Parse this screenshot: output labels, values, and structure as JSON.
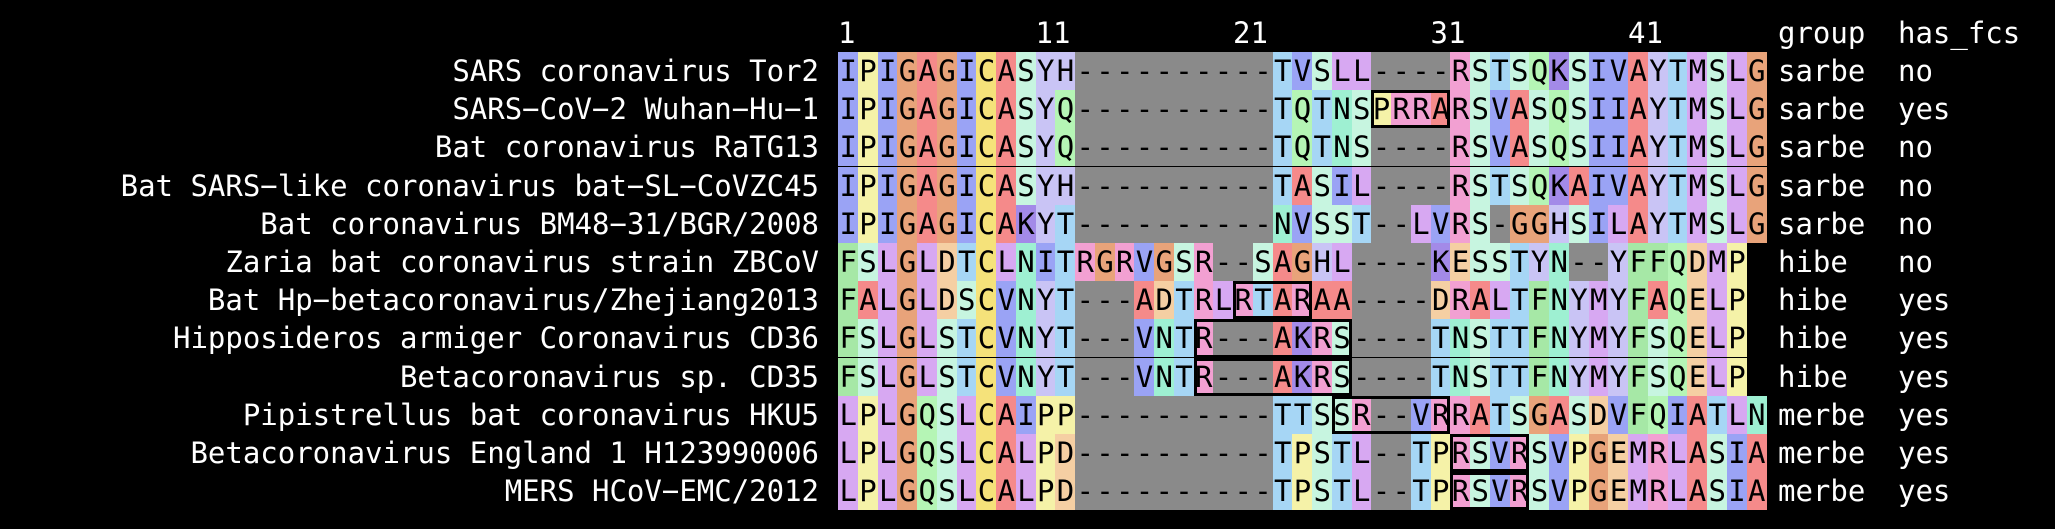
{
  "position_labels": [
    {
      "text": "1",
      "col": 0
    },
    {
      "text": "11",
      "col": 10
    },
    {
      "text": "21",
      "col": 20
    },
    {
      "text": "31",
      "col": 30
    },
    {
      "text": "41",
      "col": 40
    }
  ],
  "headers": {
    "group": "group",
    "has_fcs": "has_fcs"
  },
  "sequences": [
    {
      "name": "SARS coronavirus Tor2",
      "seq": "IPIGAGICASYH----------TVSLL----RSTSQKSIVAYTMSLG",
      "group": "sarbe",
      "has_fcs": "no"
    },
    {
      "name": "SARS−CoV−2 Wuhan−Hu−1",
      "seq": "IPIGAGICASYQ----------TQTNSPRRARSVASQSIIAYTMSLG",
      "group": "sarbe",
      "has_fcs": "yes"
    },
    {
      "name": "Bat coronavirus RaTG13",
      "seq": "IPIGAGICASYQ----------TQTNS----RSVASQSIIAYTMSLG",
      "group": "sarbe",
      "has_fcs": "no"
    },
    {
      "name": "Bat SARS−like coronavirus bat−SL−CoVZC45",
      "seq": "IPIGAGICASYH----------TASIL----RSTSQKAIVAYTMSLG",
      "group": "sarbe",
      "has_fcs": "no"
    },
    {
      "name": "Bat coronavirus BM48−31/BGR/2008",
      "seq": "IPIGAGICAKYT----------NVSST--LVRS-GGHSILAYTMSLG",
      "group": "sarbe",
      "has_fcs": "no"
    },
    {
      "name": "Zaria bat coronavirus strain ZBCoV",
      "seq": "FSLGLDTCLNITRGRVGSR--SAGHL----KESSTYN--YFFQDMP",
      "group": "hibe",
      "has_fcs": "no"
    },
    {
      "name": "Bat Hp−betacoronavirus/Zhejiang2013",
      "seq": "FALGLDSCVNYT---ADTRLRTARAA----DRALTFNYMYFAQELP",
      "group": "hibe",
      "has_fcs": "yes"
    },
    {
      "name": "Hipposideros armiger Coronavirus CD36",
      "seq": "FSLGLSTCVNYT---VNTR---AKRS----TNSTTFNYMYFSQELP",
      "group": "hibe",
      "has_fcs": "yes"
    },
    {
      "name": "Betacoronavirus sp. CD35",
      "seq": "FSLGLSTCVNYT---VNTR---AKRS----TNSTTFNYMYFSQELP",
      "group": "hibe",
      "has_fcs": "yes"
    },
    {
      "name": "Pipistrellus bat coronavirus HKU5",
      "seq": "LPLGQSLCAIPP----------TTSSR--VRRATSGASDVFQIATLN",
      "group": "merbe",
      "has_fcs": "yes"
    },
    {
      "name": "Betacoronavirus England 1 H123990006",
      "seq": "LPLGQSLCALPD----------TPSTL--TPRSVRSVPGEMRLASIA",
      "group": "merbe",
      "has_fcs": "yes"
    },
    {
      "name": "MERS HCoV−EMC/2012",
      "seq": "LPLGQSLCALPD----------TPSTL--TPRSVRSVPGEMRLASIA",
      "group": "merbe",
      "has_fcs": "yes"
    }
  ],
  "fcs_boxes": [
    {
      "row": 1,
      "start": 27,
      "end": 30
    },
    {
      "row": 6,
      "start": 20,
      "end": 23
    },
    {
      "row": 7,
      "start": 18,
      "end": 25
    },
    {
      "row": 8,
      "start": 18,
      "end": 25
    },
    {
      "row": 9,
      "start": 25,
      "end": 30
    },
    {
      "row": 10,
      "start": 31,
      "end": 34
    },
    {
      "row": 11,
      "start": 31,
      "end": 34
    }
  ],
  "residue_colors": {
    "I": "#9aa3f5",
    "L": "#d7a8f2",
    "V": "#9aa3f5",
    "M": "#d7a8f2",
    "P": "#f5f2a8",
    "G": "#e8a37a",
    "A": "#f58a8a",
    "C": "#f5e27a",
    "S": "#c7f5e0",
    "T": "#a6d6f5",
    "Y": "#c9c4f5",
    "H": "#c9c4f5",
    "Q": "#b5f5b5",
    "N": "#9ef0d2",
    "R": "#f2a0d2",
    "K": "#a38ae8",
    "D": "#f5cfa3",
    "E": "#f5cfa3",
    "F": "#a6e8a6",
    "W": "#c9c4f5",
    "gap": "#8a8a8a"
  }
}
